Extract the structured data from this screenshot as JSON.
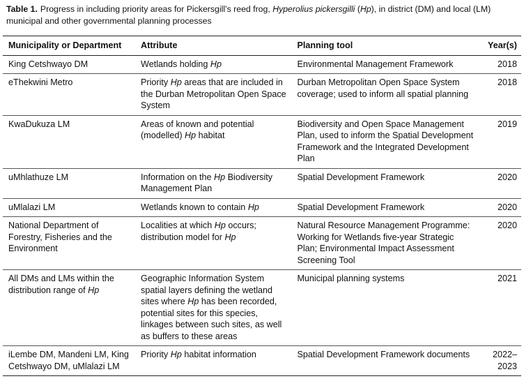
{
  "caption": {
    "label": "Table 1.",
    "runs": [
      "Progress in including priority areas for Pickersgill’s reed frog, ",
      "Hyperolius pickersgilli",
      " (",
      "Hp",
      "), in district (DM) and local (LM) municipal and other governmental planning processes"
    ]
  },
  "table": {
    "header": [
      "Municipality or Department",
      "Attribute",
      "Planning tool",
      "Year(s)"
    ],
    "rows": [
      [
        [
          "King Cetshwayo DM"
        ],
        [
          "Wetlands holding ",
          "Hp"
        ],
        [
          "Environmental Management Framework"
        ],
        [
          "2018"
        ]
      ],
      [
        [
          "eThekwini Metro"
        ],
        [
          "Priority ",
          "Hp",
          " areas that are included in the Durban Metropolitan Open Space System"
        ],
        [
          "Durban Metropolitan Open Space System coverage; used to inform all spatial planning"
        ],
        [
          "2018"
        ]
      ],
      [
        [
          "KwaDukuza LM"
        ],
        [
          "Areas of known and potential (modelled) ",
          "Hp",
          " habitat"
        ],
        [
          "Biodiversity and Open Space Management Plan, used to inform the Spatial Development Framework and the Integrated Development Plan"
        ],
        [
          "2019"
        ]
      ],
      [
        [
          "uMhlathuze LM"
        ],
        [
          "Information on the ",
          "Hp",
          " Biodiversity Management Plan"
        ],
        [
          "Spatial Development Framework"
        ],
        [
          "2020"
        ]
      ],
      [
        [
          "uMlalazi LM"
        ],
        [
          "Wetlands known to contain ",
          "Hp"
        ],
        [
          "Spatial Development Framework"
        ],
        [
          "2020"
        ]
      ],
      [
        [
          "National Department of Forestry, Fisheries and the Environment"
        ],
        [
          "Localities at which ",
          "Hp",
          " occurs; distribution model for ",
          "Hp"
        ],
        [
          "Natural Resource Management Programme: Working for Wetlands five-year Strategic Plan; Environmental Impact Assessment Screening Tool"
        ],
        [
          "2020"
        ]
      ],
      [
        [
          "All DMs and LMs within the distribution range of ",
          "Hp"
        ],
        [
          "Geographic Information System spatial layers defining the wetland sites where ",
          "Hp",
          " has been recorded, potential sites for this species, linkages between such sites, as well as buffers to these areas"
        ],
        [
          "Municipal planning systems"
        ],
        [
          "2021"
        ]
      ],
      [
        [
          "iLembe DM, Mandeni LM, King Cetshwayo DM, uMlalazi LM"
        ],
        [
          "Priority ",
          "Hp",
          " habitat information"
        ],
        [
          "Spatial Development Framework documents"
        ],
        [
          "2022–2023"
        ]
      ]
    ]
  }
}
